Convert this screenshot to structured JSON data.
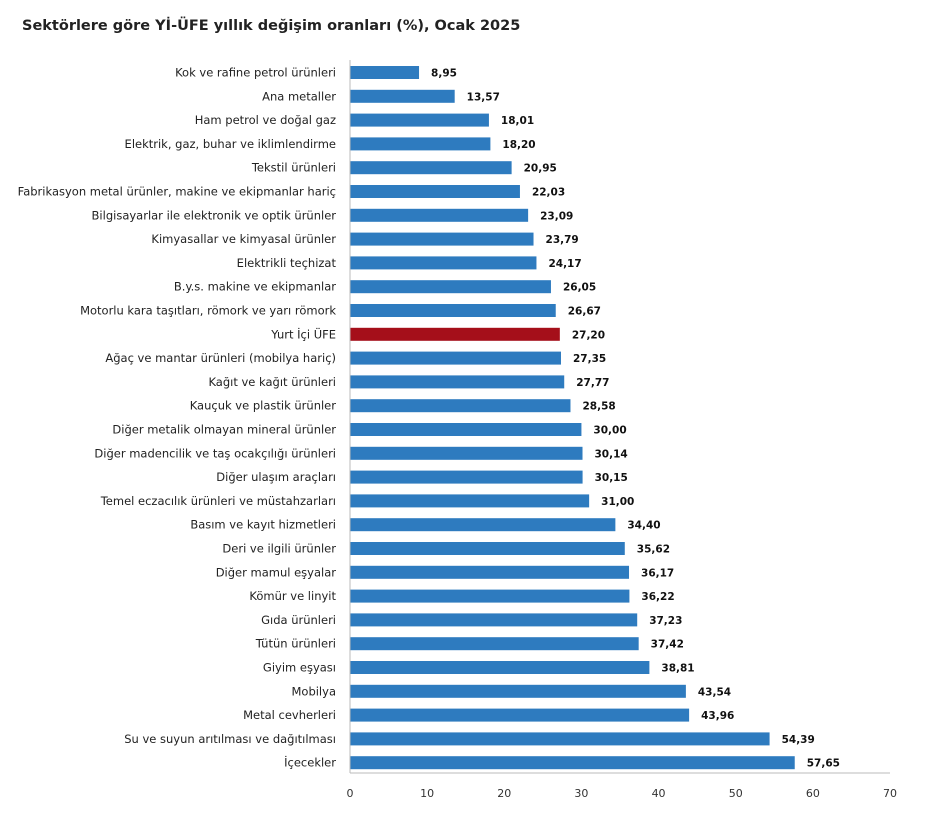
{
  "chart_data": {
    "type": "bar",
    "orientation": "horizontal",
    "title": "Sektörlere göre Yİ-ÜFE yıllık değişim oranları (%), Ocak 2025",
    "xlabel": "",
    "ylabel": "",
    "xlim": [
      0,
      70
    ],
    "xticks": [
      0,
      10,
      20,
      30,
      40,
      50,
      60,
      70
    ],
    "grid": false,
    "colors": {
      "default": "#2e7bbf",
      "highlight": "#a50f1a"
    },
    "highlight_category": "Yurt İçi ÜFE",
    "categories": [
      "Kok ve rafine petrol ürünleri",
      "Ana metaller",
      "Ham petrol ve doğal gaz",
      "Elektrik, gaz, buhar ve iklimlendirme",
      "Tekstil ürünleri",
      "Fabrikasyon metal ürünler, makine ve ekipmanlar hariç",
      "Bilgisayarlar ile elektronik ve optik ürünler",
      "Kimyasallar ve kimyasal ürünler",
      "Elektrikli teçhizat",
      "B.y.s. makine ve ekipmanlar",
      "Motorlu kara taşıtları, römork ve yarı römork",
      "Yurt İçi ÜFE",
      "Ağaç ve mantar ürünleri (mobilya hariç)",
      "Kağıt ve kağıt ürünleri",
      "Kauçuk ve plastik ürünler",
      "Diğer metalik olmayan mineral ürünler",
      "Diğer madencilik ve taş ocakçılığı ürünleri",
      "Diğer ulaşım araçları",
      "Temel eczacılık ürünleri ve müstahzarları",
      "Basım ve kayıt hizmetleri",
      "Deri ve ilgili ürünler",
      "Diğer mamul eşyalar",
      "Kömür ve linyit",
      "Gıda ürünleri",
      "Tütün ürünleri",
      "Giyim eşyası",
      "Mobilya",
      "Metal cevherleri",
      "Su ve suyun arıtılması ve dağıtılması",
      "İçecekler"
    ],
    "values": [
      8.95,
      13.57,
      18.01,
      18.2,
      20.95,
      22.03,
      23.09,
      23.79,
      24.17,
      26.05,
      26.67,
      27.2,
      27.35,
      27.77,
      28.58,
      30.0,
      30.14,
      30.15,
      31.0,
      34.4,
      35.62,
      36.17,
      36.22,
      37.23,
      37.42,
      38.81,
      43.54,
      43.96,
      54.39,
      57.65
    ],
    "value_labels": [
      "8,95",
      "13,57",
      "18,01",
      "18,20",
      "20,95",
      "22,03",
      "23,09",
      "23,79",
      "24,17",
      "26,05",
      "26,67",
      "27,20",
      "27,35",
      "27,77",
      "28,58",
      "30,00",
      "30,14",
      "30,15",
      "31,00",
      "34,40",
      "35,62",
      "36,17",
      "36,22",
      "37,23",
      "37,42",
      "38,81",
      "43,54",
      "43,96",
      "54,39",
      "57,65"
    ]
  }
}
